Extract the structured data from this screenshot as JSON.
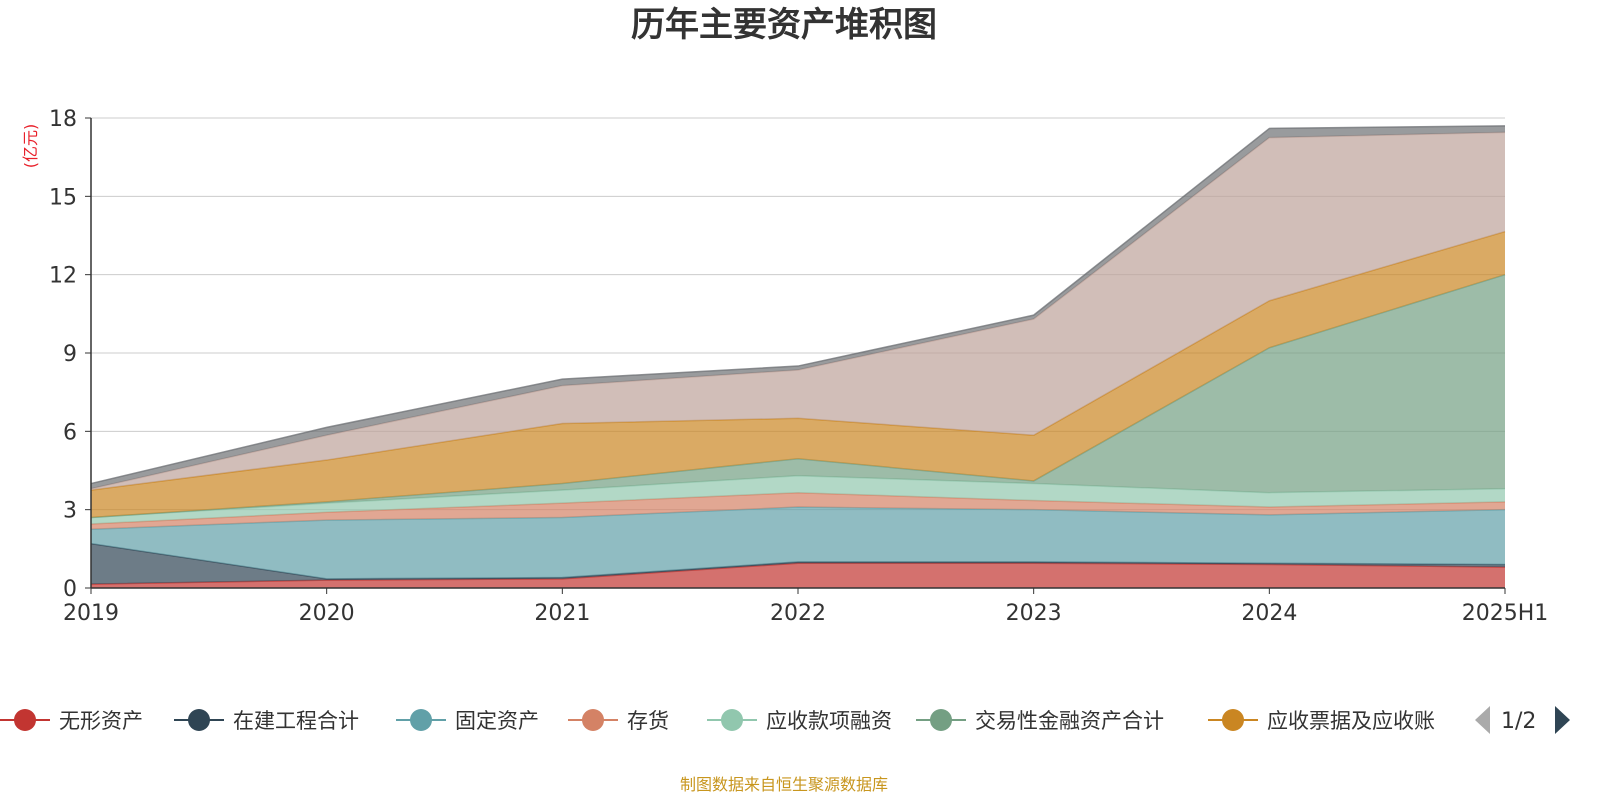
{
  "chart_data": {
    "type": "area",
    "stacked": true,
    "title": "历年主要资产堆积图",
    "unit_label": "(亿元)",
    "x": [
      "2019",
      "2020",
      "2021",
      "2022",
      "2023",
      "2024",
      "2025H1"
    ],
    "ylim": [
      0,
      18
    ],
    "yticks": [
      "0",
      "3",
      "6",
      "9",
      "12",
      "15",
      "18"
    ],
    "grid": true,
    "legend_position": "bottom",
    "series": [
      {
        "name": "无形资产",
        "color": "#c23531",
        "values": [
          0.15,
          0.3,
          0.35,
          0.95,
          0.95,
          0.9,
          0.8
        ]
      },
      {
        "name": "在建工程合计",
        "color": "#2f4554",
        "values": [
          1.55,
          0.05,
          0.05,
          0.05,
          0.05,
          0.05,
          0.1
        ]
      },
      {
        "name": "固定资产",
        "color": "#61a0a8",
        "values": [
          0.55,
          2.25,
          2.3,
          2.1,
          2.0,
          1.85,
          2.1
        ]
      },
      {
        "name": "存货",
        "color": "#d48265",
        "values": [
          0.2,
          0.3,
          0.55,
          0.55,
          0.35,
          0.3,
          0.3
        ]
      },
      {
        "name": "应收款项融资",
        "color": "#91c7ae",
        "values": [
          0.25,
          0.35,
          0.5,
          0.65,
          0.65,
          0.55,
          0.5
        ]
      },
      {
        "name": "交易性金融资产合计",
        "color": "#749f83",
        "values": [
          0.0,
          0.05,
          0.25,
          0.65,
          0.1,
          5.55,
          8.2
        ]
      },
      {
        "name": "应收票据及应收账",
        "color": "#ca8622",
        "values": [
          1.05,
          1.6,
          2.3,
          1.55,
          1.75,
          1.8,
          1.65
        ]
      },
      {
        "name": "",
        "color": "#bda29a",
        "values": [
          0.05,
          0.95,
          1.45,
          1.85,
          4.45,
          6.25,
          3.8
        ]
      },
      {
        "name": "",
        "color": "#6e7074",
        "values": [
          0.2,
          0.3,
          0.25,
          0.15,
          0.15,
          0.35,
          0.25
        ]
      }
    ],
    "legend_visible": [
      "无形资产",
      "在建工程合计",
      "固定资产",
      "存货",
      "应收款项融资",
      "交易性金融资产合计",
      "应收票据及应收账"
    ],
    "legend_page": "1/2",
    "source_note": "制图数据来自恒生聚源数据库"
  }
}
